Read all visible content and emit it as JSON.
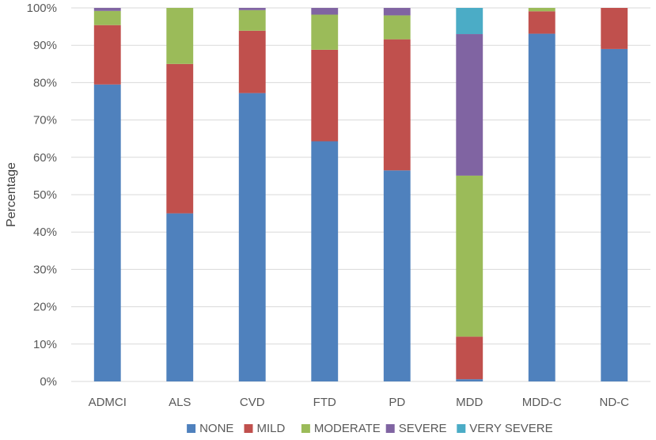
{
  "chart_data": {
    "type": "bar",
    "stacked": true,
    "title": "",
    "xlabel": "",
    "ylabel": "Percentage",
    "ylim": [
      0,
      100
    ],
    "yticks": [
      0,
      10,
      20,
      30,
      40,
      50,
      60,
      70,
      80,
      90,
      100
    ],
    "ytick_labels": [
      "0%",
      "10%",
      "20%",
      "30%",
      "40%",
      "50%",
      "60%",
      "70%",
      "80%",
      "90%",
      "100%"
    ],
    "grid": true,
    "legend_position": "bottom",
    "categories": [
      "ADMCI",
      "ALS",
      "CVD",
      "FTD",
      "PD",
      "MDD",
      "MDD-C",
      "ND-C"
    ],
    "series": [
      {
        "name": "NONE",
        "color": "#4F81BD",
        "values": [
          79.5,
          45,
          77.2,
          64.3,
          56.5,
          0.6,
          93.1,
          89
        ]
      },
      {
        "name": "MILD",
        "color": "#C0504D",
        "values": [
          15.9,
          40,
          16.7,
          24.5,
          35.1,
          11.4,
          6,
          11
        ]
      },
      {
        "name": "MODERATE",
        "color": "#9BBB59",
        "values": [
          3.8,
          15,
          5.5,
          9.4,
          6.4,
          43.1,
          0.9,
          0
        ]
      },
      {
        "name": "SEVERE",
        "color": "#8064A2",
        "values": [
          0.8,
          0,
          0.6,
          1.8,
          2,
          37.9,
          0,
          0
        ]
      },
      {
        "name": "VERY SEVERE",
        "color": "#4BACC6",
        "values": [
          0,
          0,
          0,
          0,
          0,
          7,
          0,
          0
        ]
      }
    ]
  }
}
